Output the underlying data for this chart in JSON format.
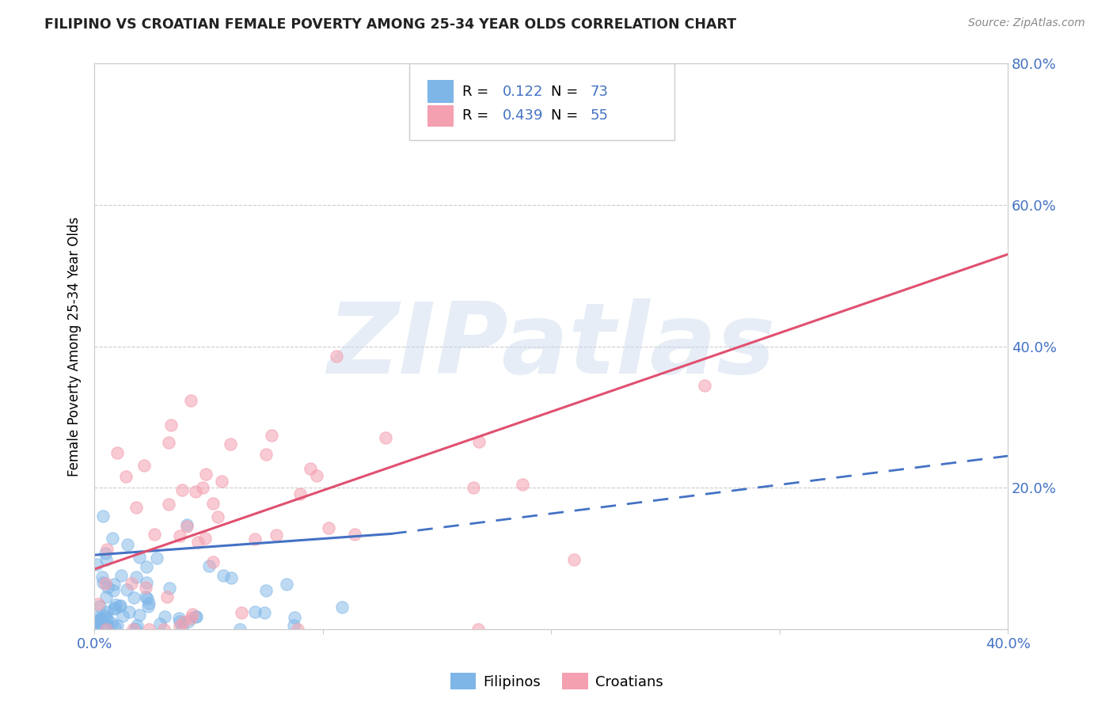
{
  "title": "FILIPINO VS CROATIAN FEMALE POVERTY AMONG 25-34 YEAR OLDS CORRELATION CHART",
  "source": "Source: ZipAtlas.com",
  "ylabel": "Female Poverty Among 25-34 Year Olds",
  "xlim": [
    0.0,
    0.4
  ],
  "ylim": [
    0.0,
    0.8
  ],
  "xticks": [
    0.0,
    0.1,
    0.2,
    0.3,
    0.4
  ],
  "yticks": [
    0.0,
    0.2,
    0.4,
    0.6,
    0.8
  ],
  "xtick_labels": [
    "0.0%",
    "",
    "",
    "",
    "40.0%"
  ],
  "ytick_labels_right": [
    "",
    "20.0%",
    "40.0%",
    "60.0%",
    "80.0%"
  ],
  "filipino_R": 0.122,
  "filipino_N": 73,
  "croatian_R": 0.439,
  "croatian_N": 55,
  "filipino_color": "#7EB6E8",
  "croatian_color": "#F4A0B0",
  "filipino_line_color": "#4472C4",
  "croatian_line_color": "#E05070",
  "watermark": "ZIPatlas",
  "watermark_color": "#C8D8EC",
  "legend_labels": [
    "Filipinos",
    "Croatians"
  ],
  "background_color": "#FFFFFF",
  "grid_color": "#CCCCCC",
  "title_color": "#222222",
  "source_color": "#888888",
  "tick_color": "#4472C4",
  "fil_line_x0": 0.0,
  "fil_line_y0": 0.105,
  "fil_line_x1": 0.13,
  "fil_line_y1": 0.135,
  "fil_line_x2": 0.4,
  "fil_line_y2": 0.245,
  "cro_line_x0": 0.0,
  "cro_line_y0": 0.085,
  "cro_line_x1": 0.4,
  "cro_line_y1": 0.53
}
